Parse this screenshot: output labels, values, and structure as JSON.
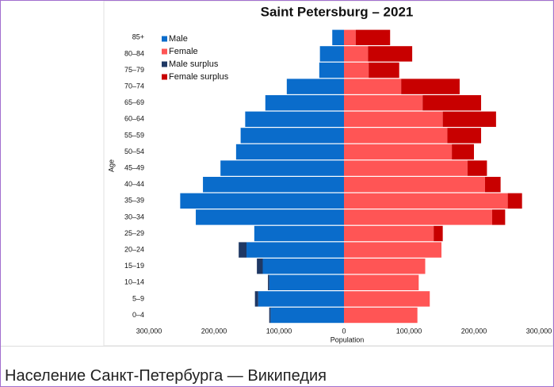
{
  "page": {
    "caption": "Население Санкт-Петербурга — Википедия"
  },
  "chart_data": {
    "type": "pyramid",
    "title": "Saint Petersburg – 2021",
    "x_label": "Population",
    "y_label": "Age",
    "categories": [
      "85+",
      "80–84",
      "75–79",
      "70–74",
      "65–69",
      "60–64",
      "55–59",
      "50–54",
      "45–49",
      "40–44",
      "35–39",
      "30–34",
      "25–29",
      "20–24",
      "15–19",
      "10–14",
      "5–9",
      "0–4"
    ],
    "series": [
      {
        "name": "Male",
        "color": "#0a6ccb",
        "side": "left",
        "values": [
          18000,
          37000,
          38000,
          88000,
          121000,
          152000,
          159000,
          166000,
          190000,
          217000,
          252000,
          228000,
          138000,
          150000,
          125000,
          115000,
          132000,
          113000
        ]
      },
      {
        "name": "Female",
        "color": "#ff5555",
        "side": "right",
        "values": [
          18000,
          37000,
          38000,
          88000,
          121000,
          152000,
          159000,
          166000,
          190000,
          217000,
          252000,
          228000,
          138000,
          150000,
          125000,
          115000,
          132000,
          113000
        ]
      },
      {
        "name": "Male surplus",
        "color": "#1f3864",
        "side": "left",
        "values": [
          0,
          0,
          0,
          0,
          0,
          0,
          0,
          0,
          0,
          0,
          0,
          0,
          0,
          12000,
          9000,
          2000,
          5000,
          2000
        ]
      },
      {
        "name": "Female surplus",
        "color": "#c80000",
        "side": "right",
        "values": [
          53000,
          68000,
          47000,
          90000,
          90000,
          82000,
          52000,
          34000,
          30000,
          24000,
          22000,
          20000,
          14000,
          0,
          0,
          0,
          0,
          0
        ]
      }
    ],
    "xlim": [
      -300000,
      300000
    ],
    "xticks": [
      {
        "value": -300000,
        "label": "300,000"
      },
      {
        "value": -200000,
        "label": "200,000"
      },
      {
        "value": -100000,
        "label": "100,000"
      },
      0,
      {
        "value": 100000,
        "label": "100,000"
      },
      {
        "value": 200000,
        "label": "200,000"
      },
      {
        "value": 300000,
        "label": "300,000"
      }
    ],
    "grid": false,
    "legend": "upper left"
  }
}
